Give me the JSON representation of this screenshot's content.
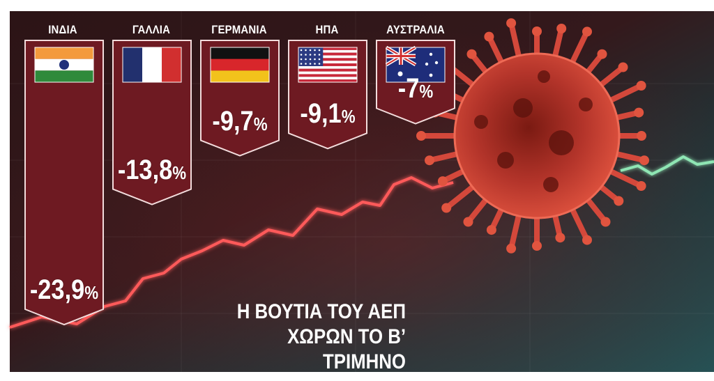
{
  "chart_data": {
    "type": "bar",
    "categories": [
      "ΙΝΔΙΑ",
      "ΓΑΛΛΙΑ",
      "ΓΕΡΜΑΝΙΑ",
      "ΗΠΑ",
      "ΑΥΣΤΡΑΛΙΑ"
    ],
    "values": [
      -23.9,
      -13.8,
      -9.7,
      -9.1,
      -7.0
    ],
    "value_labels": [
      "-23,9",
      "-13,8",
      "-9,7",
      "-9,1",
      "-7"
    ],
    "unit": "%",
    "flags": [
      "india-flag-icon",
      "france-flag-icon",
      "germany-flag-icon",
      "usa-flag-icon",
      "australia-flag-icon"
    ],
    "title_line1": "Η ΒΟΥΤΙΑ ΤΟΥ ΑΕΠ",
    "title_line2": "ΧΩΡΩΝ ΤΟ Β’ ΤΡΙΜΗΝΟ",
    "colors": {
      "bar_fill": "#6e1a22",
      "bar_border": "#f3dcdc",
      "background": "#173a3d",
      "trend_line_red": "#ff5a5a",
      "trend_line_green": "#8fe6b4",
      "virus": "#d8463a"
    }
  }
}
